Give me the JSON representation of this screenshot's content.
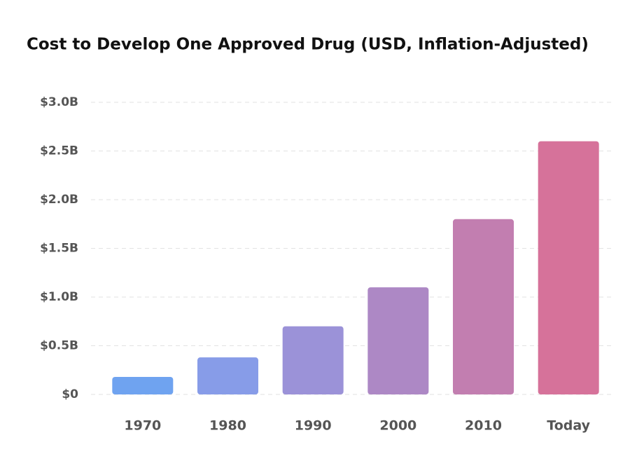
{
  "chart_data": {
    "type": "bar",
    "title": "Cost to Develop One Approved Drug (USD, Inflation-Adjusted)",
    "categories": [
      "1970",
      "1980",
      "1990",
      "2000",
      "2010",
      "Today"
    ],
    "values": [
      0.18,
      0.38,
      0.7,
      1.1,
      1.8,
      2.6
    ],
    "colors": [
      "#6fa3f0",
      "#879ce8",
      "#9b92d8",
      "#ad88c5",
      "#c27eb0",
      "#d6729a"
    ],
    "ylim": [
      0,
      3.0
    ],
    "yticks": [
      {
        "value": 0,
        "label": "$0"
      },
      {
        "value": 0.5,
        "label": "$0.5B"
      },
      {
        "value": 1.0,
        "label": "$1.0B"
      },
      {
        "value": 1.5,
        "label": "$1.5B"
      },
      {
        "value": 2.0,
        "label": "$2.0B"
      },
      {
        "value": 2.5,
        "label": "$2.5B"
      },
      {
        "value": 3.0,
        "label": "$3.0B"
      }
    ],
    "grid": true
  }
}
